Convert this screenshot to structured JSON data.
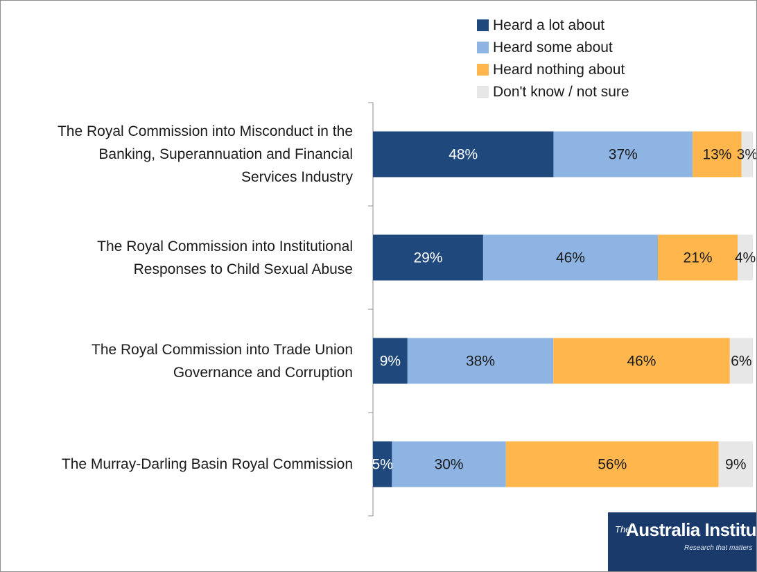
{
  "chart_data": {
    "type": "bar",
    "orientation": "horizontal",
    "stacked": true,
    "categories": [
      "The Royal Commission into Misconduct in the\nBanking, Superannuation and Financial\nServices Industry",
      "The Royal Commission into Institutional\nResponses to Child Sexual Abuse",
      "The Royal Commission into Trade Union\nGovernance and Corruption",
      "The Murray-Darling Basin Royal Commission"
    ],
    "series": [
      {
        "name": "Heard a lot about",
        "color": "#1f497d",
        "values": [
          48,
          29,
          9,
          5
        ],
        "labels": [
          "48%",
          "29%",
          "9%",
          "5%"
        ]
      },
      {
        "name": "Heard some about",
        "color": "#8db4e2",
        "values": [
          37,
          46,
          38,
          30
        ],
        "labels": [
          "37%",
          "46%",
          "38%",
          "30%"
        ]
      },
      {
        "name": "Heard nothing about",
        "color": "#ffb74d",
        "values": [
          13,
          21,
          46,
          56
        ],
        "labels": [
          "13%",
          "21%",
          "46%",
          "56%"
        ]
      },
      {
        "name": "Don't know / not sure",
        "color": "#e7e7e7",
        "values": [
          3,
          4,
          6,
          9
        ],
        "labels": [
          "3%",
          "4%",
          "6%",
          "9%"
        ]
      }
    ],
    "xlim": [
      0,
      100
    ],
    "legend": "top-right",
    "grid": false
  },
  "logo": {
    "tm": "The",
    "name": "Australia Institute",
    "tagline": "Research that matters"
  }
}
